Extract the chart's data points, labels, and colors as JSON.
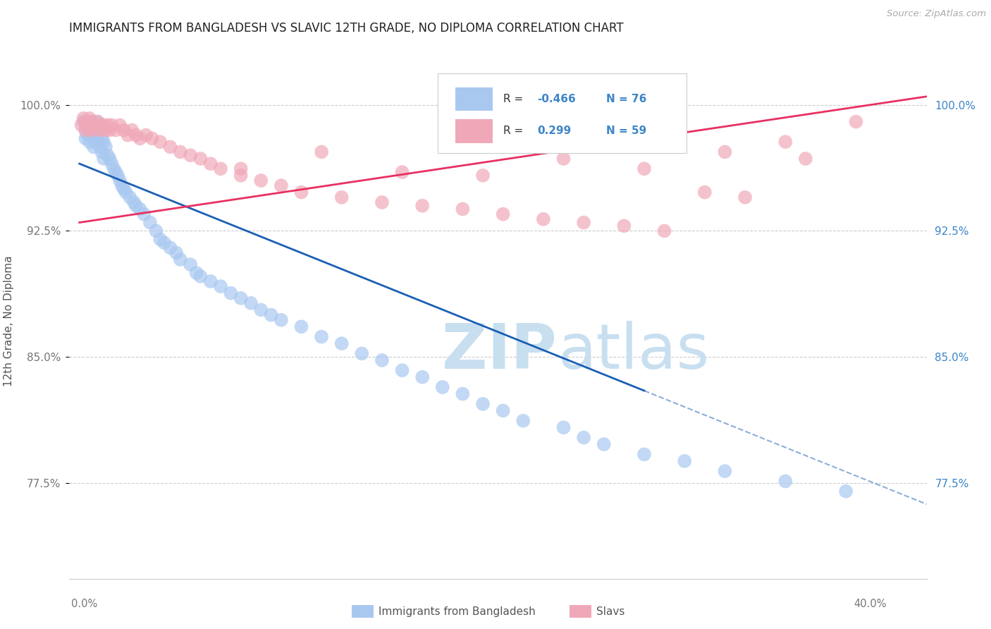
{
  "title": "IMMIGRANTS FROM BANGLADESH VS SLAVIC 12TH GRADE, NO DIPLOMA CORRELATION CHART",
  "source": "Source: ZipAtlas.com",
  "ylabel": "12th Grade, No Diploma",
  "yticks": [
    0.775,
    0.85,
    0.925,
    1.0
  ],
  "ytick_labels": [
    "77.5%",
    "85.0%",
    "92.5%",
    "100.0%"
  ],
  "xlim": [
    -0.005,
    0.42
  ],
  "ylim": [
    0.718,
    1.025
  ],
  "legend_r_bangladesh": "-0.466",
  "legend_n_bangladesh": "76",
  "legend_r_slavs": "0.299",
  "legend_n_slavs": "59",
  "color_bangladesh": "#a8c8f0",
  "color_slavs": "#f0a8b8",
  "color_trend_bangladesh": "#1a5fb4",
  "color_trend_slavs": "#e83060",
  "color_right_axis": "#3d85c8",
  "watermark_zip_color": "#c8dff0",
  "watermark_atlas_color": "#c8dff0",
  "bangladesh_x": [
    0.002,
    0.003,
    0.003,
    0.004,
    0.004,
    0.005,
    0.005,
    0.006,
    0.006,
    0.007,
    0.007,
    0.007,
    0.008,
    0.008,
    0.009,
    0.009,
    0.01,
    0.01,
    0.011,
    0.011,
    0.012,
    0.012,
    0.013,
    0.014,
    0.015,
    0.016,
    0.017,
    0.018,
    0.019,
    0.02,
    0.021,
    0.022,
    0.023,
    0.025,
    0.027,
    0.028,
    0.03,
    0.032,
    0.035,
    0.038,
    0.04,
    0.042,
    0.045,
    0.048,
    0.05,
    0.055,
    0.058,
    0.06,
    0.065,
    0.07,
    0.075,
    0.08,
    0.085,
    0.09,
    0.095,
    0.1,
    0.11,
    0.12,
    0.13,
    0.14,
    0.15,
    0.16,
    0.17,
    0.18,
    0.19,
    0.2,
    0.21,
    0.22,
    0.24,
    0.25,
    0.26,
    0.28,
    0.3,
    0.32,
    0.35,
    0.38
  ],
  "bangladesh_y": [
    0.99,
    0.985,
    0.98,
    0.988,
    0.982,
    0.985,
    0.978,
    0.99,
    0.982,
    0.988,
    0.982,
    0.975,
    0.985,
    0.978,
    0.99,
    0.98,
    0.985,
    0.975,
    0.98,
    0.972,
    0.978,
    0.968,
    0.975,
    0.97,
    0.968,
    0.965,
    0.962,
    0.96,
    0.958,
    0.955,
    0.952,
    0.95,
    0.948,
    0.945,
    0.942,
    0.94,
    0.938,
    0.935,
    0.93,
    0.925,
    0.92,
    0.918,
    0.915,
    0.912,
    0.908,
    0.905,
    0.9,
    0.898,
    0.895,
    0.892,
    0.888,
    0.885,
    0.882,
    0.878,
    0.875,
    0.872,
    0.868,
    0.862,
    0.858,
    0.852,
    0.848,
    0.842,
    0.838,
    0.832,
    0.828,
    0.822,
    0.818,
    0.812,
    0.808,
    0.802,
    0.798,
    0.792,
    0.788,
    0.782,
    0.776,
    0.77
  ],
  "slavs_x": [
    0.001,
    0.002,
    0.003,
    0.003,
    0.004,
    0.005,
    0.005,
    0.006,
    0.007,
    0.008,
    0.009,
    0.01,
    0.011,
    0.012,
    0.013,
    0.014,
    0.015,
    0.016,
    0.018,
    0.02,
    0.022,
    0.024,
    0.026,
    0.028,
    0.03,
    0.033,
    0.036,
    0.04,
    0.045,
    0.05,
    0.055,
    0.06,
    0.065,
    0.07,
    0.08,
    0.09,
    0.1,
    0.11,
    0.13,
    0.15,
    0.17,
    0.19,
    0.21,
    0.23,
    0.25,
    0.27,
    0.29,
    0.31,
    0.33,
    0.36,
    0.08,
    0.12,
    0.16,
    0.2,
    0.24,
    0.28,
    0.32,
    0.35,
    0.385
  ],
  "slavs_y": [
    0.988,
    0.992,
    0.99,
    0.985,
    0.988,
    0.992,
    0.985,
    0.99,
    0.988,
    0.985,
    0.99,
    0.988,
    0.985,
    0.988,
    0.985,
    0.988,
    0.985,
    0.988,
    0.985,
    0.988,
    0.985,
    0.982,
    0.985,
    0.982,
    0.98,
    0.982,
    0.98,
    0.978,
    0.975,
    0.972,
    0.97,
    0.968,
    0.965,
    0.962,
    0.958,
    0.955,
    0.952,
    0.948,
    0.945,
    0.942,
    0.94,
    0.938,
    0.935,
    0.932,
    0.93,
    0.928,
    0.925,
    0.948,
    0.945,
    0.968,
    0.962,
    0.972,
    0.96,
    0.958,
    0.968,
    0.962,
    0.972,
    0.978,
    0.99
  ],
  "trend_b_x0": 0.0,
  "trend_b_x1": 0.4,
  "trend_b_y0": 0.965,
  "trend_b_y1": 0.772,
  "trend_b_dash_x0": 0.28,
  "trend_b_dash_x1": 0.42,
  "trend_s_x0": 0.0,
  "trend_s_x1": 0.42,
  "trend_s_y0": 0.93,
  "trend_s_y1": 1.005
}
